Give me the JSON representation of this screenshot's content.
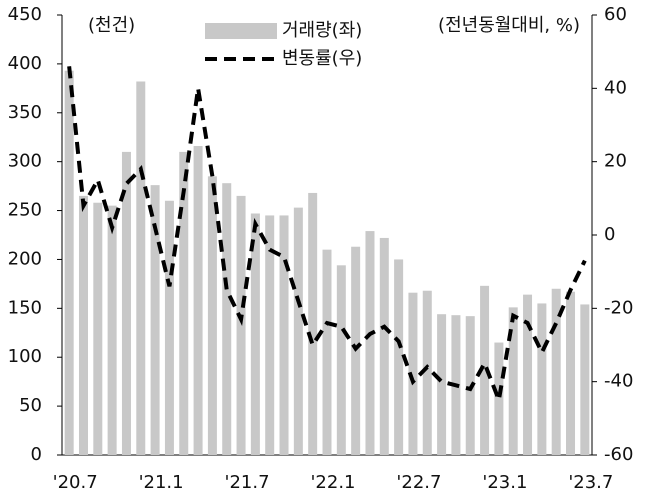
{
  "chart_data": {
    "type": "bar",
    "y_label": "(천건)",
    "y2_label": "(전년동월대비, %)",
    "categories": [
      "'20.7",
      null,
      null,
      null,
      null,
      null,
      "'21.1",
      null,
      null,
      null,
      null,
      null,
      "'21.7",
      null,
      null,
      null,
      null,
      null,
      "'22.1",
      null,
      null,
      null,
      null,
      null,
      "'22.7",
      null,
      null,
      null,
      null,
      null,
      "'23.1",
      null,
      null,
      null,
      null,
      null,
      "'23.7"
    ],
    "series": [
      {
        "name": "거래량(좌)",
        "type": "bar",
        "color": "#c8c8c8",
        "values": [
          393,
          265,
          258,
          255,
          310,
          382,
          276,
          260,
          310,
          316,
          285,
          278,
          265,
          247,
          245,
          245,
          253,
          268,
          210,
          194,
          213,
          229,
          222,
          200,
          166,
          168,
          144,
          143,
          142,
          173,
          115,
          151,
          164,
          155,
          170,
          167,
          154
        ]
      },
      {
        "name": "변동률(우)",
        "type": "line",
        "axis": "y2",
        "color": "#000000",
        "values": [
          46,
          8,
          15,
          2,
          14,
          18,
          2,
          -14,
          12,
          40,
          16,
          -15,
          -23,
          3,
          -4,
          -6,
          -18,
          -30,
          -24,
          -25,
          -31,
          -27,
          -25,
          -29,
          -40,
          -36,
          -40,
          -41,
          -42,
          -35,
          -45,
          -22,
          -24,
          -32,
          -24,
          -15,
          -7
        ]
      }
    ],
    "ylim": [
      0,
      450
    ],
    "yticks": [
      0,
      50,
      100,
      150,
      200,
      250,
      300,
      350,
      400,
      450
    ],
    "y2lim": [
      -60,
      60
    ],
    "y2ticks": [
      -60,
      -40,
      -20,
      0,
      20,
      40,
      60
    ]
  }
}
